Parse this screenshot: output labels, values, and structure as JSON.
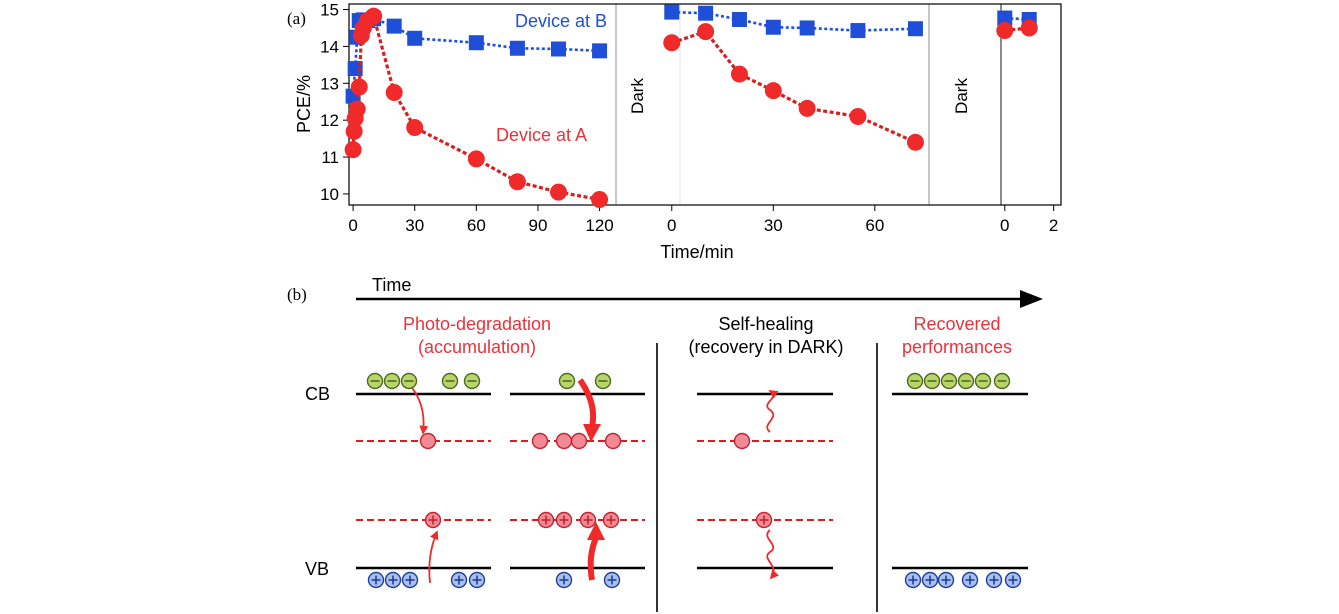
{
  "colors": {
    "blue": "#1f4fd8",
    "red": "#f02a2a",
    "red_line": "#d81e1e",
    "green": "#b9d46a",
    "pink": "#f28a95",
    "circle_blue": "#a9c0ee",
    "label_red": "#e8333b"
  },
  "panel_a": {
    "tag": "(a)"
  },
  "panel_b": {
    "tag": "(b)"
  },
  "chart_data": {
    "type": "line",
    "xlabel": "Time/min",
    "ylabel": "PCE/%",
    "ylim": [
      9.7,
      15.15
    ],
    "yticks": [
      10,
      11,
      12,
      13,
      14,
      15
    ],
    "grid": false,
    "legend": "inline-labels",
    "segments": [
      {
        "xlim": [
          -2,
          128
        ],
        "xticks": [
          0,
          30,
          60,
          90,
          120
        ],
        "end_label": "Dark"
      },
      {
        "xlim": [
          -2,
          76
        ],
        "xticks": [
          0,
          30,
          60
        ],
        "end_label": "Dark"
      },
      {
        "xlim": [
          -0.4,
          2.3
        ],
        "xticks": [
          0,
          2
        ],
        "end_label": ""
      }
    ],
    "series": [
      {
        "name": "Device at B",
        "marker": "square",
        "color": "#1f4fd8",
        "segments": [
          {
            "x": [
              0,
              1,
              2,
              3,
              5,
              7,
              10,
              20,
              30,
              60,
              80,
              100,
              120
            ],
            "y": [
              12.65,
              13.4,
              14.25,
              14.7,
              14.72,
              14.7,
              14.75,
              14.55,
              14.22,
              14.1,
              13.95,
              13.93,
              13.88
            ]
          },
          {
            "x": [
              0,
              10,
              20,
              30,
              40,
              55,
              72
            ],
            "y": [
              14.93,
              14.9,
              14.73,
              14.52,
              14.5,
              14.43,
              14.48
            ]
          },
          {
            "x": [
              0,
              1
            ],
            "y": [
              14.77,
              14.73
            ]
          }
        ]
      },
      {
        "name": "Device at A",
        "marker": "circle",
        "color": "#f02a2a",
        "segments": [
          {
            "x": [
              0,
              0.5,
              1,
              2,
              3,
              4,
              5,
              7,
              10,
              20,
              30,
              60,
              80,
              100,
              120
            ],
            "y": [
              11.2,
              11.7,
              12.05,
              12.3,
              12.9,
              14.3,
              14.5,
              14.7,
              14.82,
              12.75,
              11.8,
              10.95,
              10.33,
              10.05,
              9.85
            ]
          },
          {
            "x": [
              0,
              10,
              20,
              30,
              40,
              55,
              72
            ],
            "y": [
              14.1,
              14.4,
              13.25,
              12.8,
              12.32,
              12.1,
              11.4
            ]
          },
          {
            "x": [
              0,
              1
            ],
            "y": [
              14.43,
              14.5
            ]
          }
        ]
      }
    ]
  },
  "diagram": {
    "time_label": "Time",
    "captions": [
      [
        "Photo-degradation",
        "(accumulation)"
      ],
      [
        "Self-healing",
        "(recovery in DARK)"
      ],
      [
        "Recovered",
        "performances"
      ]
    ],
    "band_labels": {
      "cb": "CB",
      "vb": "VB"
    },
    "electron_sign": "⊖",
    "hole_sign": "⊕"
  }
}
